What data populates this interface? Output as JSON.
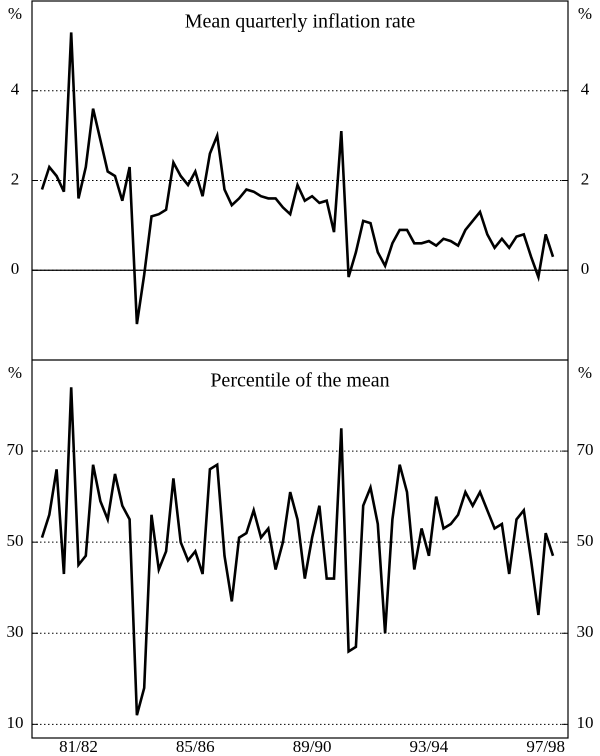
{
  "chart_data": [
    {
      "type": "line",
      "title": "Mean quarterly inflation rate",
      "y_label": "%",
      "color": "#000000",
      "ylim": [
        -2,
        6
      ],
      "yticks": [
        0,
        2,
        4
      ],
      "grid": true,
      "values": [
        1.8,
        2.3,
        2.1,
        1.75,
        5.3,
        1.6,
        2.3,
        3.6,
        2.9,
        2.2,
        2.1,
        1.55,
        2.3,
        -1.2,
        -0.1,
        1.2,
        1.25,
        1.35,
        2.4,
        2.1,
        1.9,
        2.2,
        1.65,
        2.6,
        3.0,
        1.8,
        1.45,
        1.6,
        1.8,
        1.75,
        1.65,
        1.6,
        1.6,
        1.4,
        1.25,
        1.9,
        1.55,
        1.65,
        1.5,
        1.55,
        0.85,
        3.1,
        -0.15,
        0.4,
        1.1,
        1.05,
        0.4,
        0.1,
        0.6,
        0.9,
        0.9,
        0.6,
        0.6,
        0.65,
        0.55,
        0.7,
        0.65,
        0.55,
        0.9,
        1.1,
        1.3,
        0.8,
        0.5,
        0.7,
        0.5,
        0.75,
        0.8,
        0.3,
        -0.15,
        0.8,
        0.3
      ]
    },
    {
      "type": "line",
      "title": "Percentile of the mean",
      "y_label": "%",
      "color": "#000000",
      "ylim": [
        7,
        90
      ],
      "yticks": [
        10,
        30,
        50,
        70
      ],
      "grid": true,
      "categories": [
        null,
        null,
        null,
        null,
        null,
        "81/82",
        null,
        null,
        null,
        null,
        null,
        null,
        null,
        null,
        null,
        null,
        null,
        null,
        null,
        null,
        null,
        "85/86",
        null,
        null,
        null,
        null,
        null,
        null,
        null,
        null,
        null,
        null,
        null,
        null,
        null,
        null,
        null,
        "89/90",
        null,
        null,
        null,
        null,
        null,
        null,
        null,
        null,
        null,
        null,
        null,
        null,
        null,
        null,
        null,
        "93/94",
        null,
        null,
        null,
        null,
        null,
        null,
        null,
        null,
        null,
        null,
        null,
        null,
        null,
        null,
        null,
        "97/98",
        null
      ],
      "values": [
        51,
        56,
        66,
        43,
        84,
        45,
        47,
        67,
        59,
        55,
        65,
        58,
        55,
        12,
        18,
        56,
        44,
        48,
        64,
        50,
        46,
        48,
        43,
        66,
        67,
        47,
        37,
        51,
        52,
        57,
        51,
        53,
        44,
        50,
        61,
        55,
        42,
        51,
        58,
        42,
        42,
        75,
        26,
        27,
        58,
        62,
        54,
        30,
        55,
        67,
        61,
        44,
        53,
        47,
        60,
        53,
        54,
        56,
        61,
        58,
        61,
        57,
        53,
        54,
        43,
        55,
        57,
        46,
        34,
        52,
        47
      ]
    }
  ]
}
